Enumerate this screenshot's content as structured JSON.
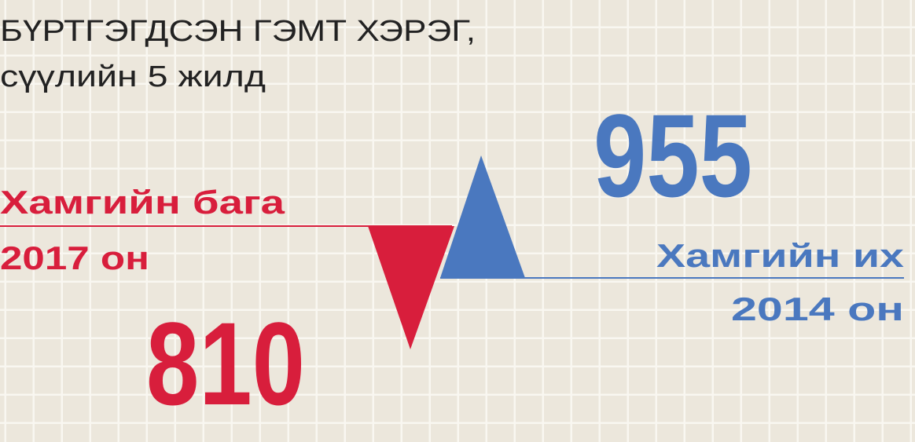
{
  "header": {
    "title_lines": [
      "БҮРТГЭГДСЭН ГЭМТ ХЭРЭГ,",
      "сүүлийн 5 жилд"
    ]
  },
  "minimum": {
    "label": "Хамгийн бага",
    "year": "2017 он",
    "value": 810
  },
  "maximum": {
    "label": "Хамгийн их",
    "year": "2014  он",
    "value": 955
  }
}
